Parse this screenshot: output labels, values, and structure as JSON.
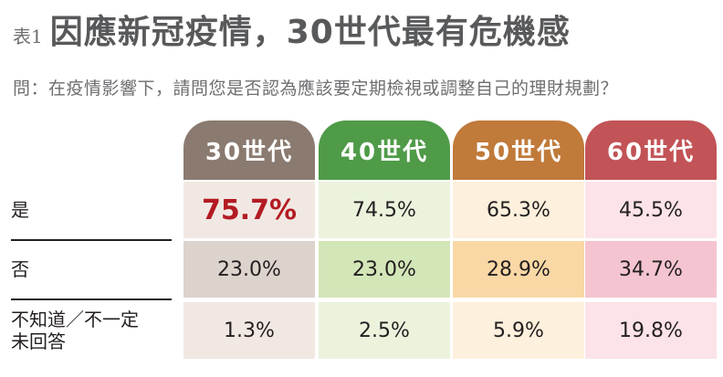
{
  "header": {
    "tag": "表1",
    "title": "因應新冠疫情，30世代最有危機感",
    "question": "問：在疫情影響下，請問您是否認為應該要定期檢視或調整自己的理財規劃？"
  },
  "colors": {
    "head": [
      "#8b7a70",
      "#4f9b48",
      "#c07a3a",
      "#c25356"
    ],
    "row1": [
      "#f1e8e3",
      "#ebf3dd",
      "#fdf0dc",
      "#fbe3e8"
    ],
    "row2": [
      "#ddd3cd",
      "#d3e6b8",
      "#fad8a6",
      "#f4c5d0"
    ],
    "row3": [
      "#f1e8e3",
      "#ebf3dd",
      "#fdf0dc",
      "#fbe3e8"
    ],
    "highlight": "#b31b23"
  },
  "chart_data": {
    "type": "table",
    "columns": [
      "30世代",
      "40世代",
      "50世代",
      "60世代"
    ],
    "rows": [
      {
        "label": "是",
        "values": [
          "75.7%",
          "74.5%",
          "65.3%",
          "45.5%"
        ]
      },
      {
        "label": "否",
        "values": [
          "23.0%",
          "23.0%",
          "28.9%",
          "34.7%"
        ]
      },
      {
        "label_line1": "不知道／不一定",
        "label_line2": "未回答",
        "values": [
          "1.3%",
          "2.5%",
          "5.9%",
          "19.8%"
        ]
      }
    ]
  }
}
